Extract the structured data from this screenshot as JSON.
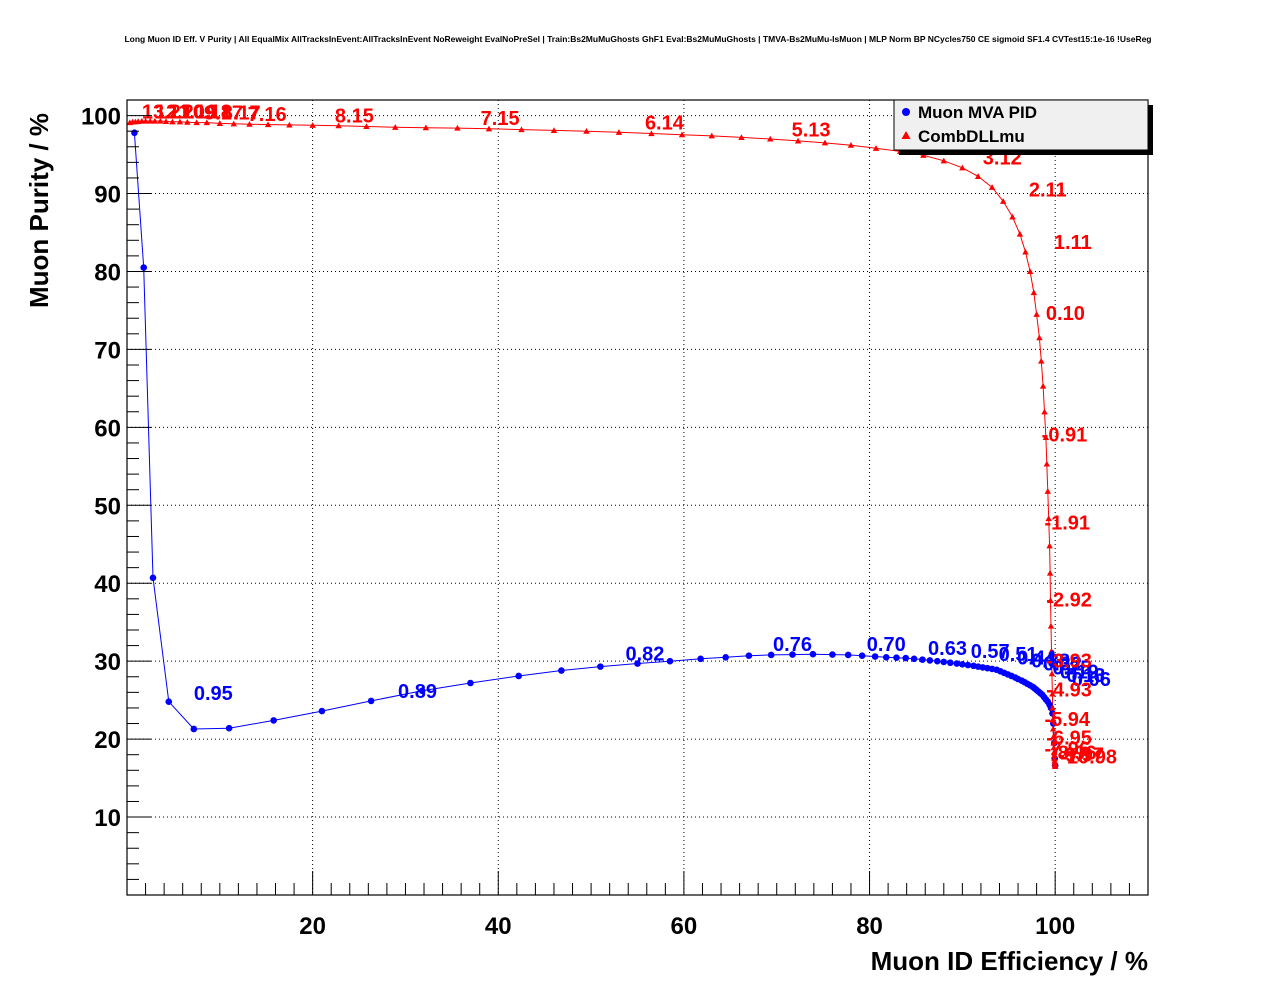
{
  "chart_data": {
    "type": "scatter",
    "title": "Long Muon ID Eff. V Purity | All EqualMix AllTracksInEvent:AllTracksInEvent NoReweight EvalNoPreSel | Train:Bs2MuMuGhosts GhF1 Eval:Bs2MuMuGhosts | TMVA-Bs2MuMu-IsMuon | MLP Norm BP NCycles750 CE sigmoid SF1.4 CVTest15:1e-16 !UseReg",
    "xlabel": "Muon ID Efficiency / %",
    "ylabel": "Muon Purity / %",
    "xlim": [
      0,
      110
    ],
    "ylim": [
      0,
      102
    ],
    "x_ticks": [
      20,
      40,
      60,
      80,
      100
    ],
    "y_ticks": [
      10,
      20,
      30,
      40,
      50,
      60,
      70,
      80,
      90,
      100
    ],
    "grid": true,
    "legend_position": "top-right",
    "series": [
      {
        "name": "Muon MVA PID",
        "color": "#0000ff",
        "marker": "circle",
        "x": [
          0.8,
          1.8,
          2.8,
          4.5,
          7.2,
          11.0,
          15.8,
          21.0,
          26.3,
          31.8,
          37.0,
          42.2,
          46.8,
          51.0,
          55.0,
          58.5,
          61.8,
          64.5,
          67.0,
          69.4,
          71.7,
          73.9,
          76.0,
          77.7,
          79.2,
          80.6,
          81.8,
          82.9,
          83.9,
          84.8,
          85.7,
          86.5,
          87.3,
          88.0,
          88.7,
          89.4,
          90.0,
          90.6,
          91.2,
          91.7,
          92.2,
          92.7,
          93.2,
          93.7,
          94.1,
          94.5,
          94.9,
          95.3,
          95.7,
          96.0,
          96.4,
          96.7,
          97.0,
          97.3,
          97.6,
          97.8,
          98.0,
          98.2,
          98.4,
          98.6,
          98.8,
          99.0,
          99.2,
          99.4,
          99.55,
          99.7,
          99.8,
          99.9,
          99.95,
          100.0
        ],
        "y": [
          97.8,
          80.5,
          40.7,
          24.8,
          21.3,
          21.4,
          22.4,
          23.6,
          24.9,
          26.2,
          27.2,
          28.1,
          28.8,
          29.3,
          29.7,
          30.0,
          30.3,
          30.5,
          30.7,
          30.8,
          30.85,
          30.9,
          30.85,
          30.8,
          30.7,
          30.6,
          30.5,
          30.45,
          30.4,
          30.3,
          30.2,
          30.1,
          30.0,
          29.9,
          29.8,
          29.7,
          29.6,
          29.5,
          29.4,
          29.3,
          29.2,
          29.1,
          29.0,
          28.9,
          28.7,
          28.5,
          28.3,
          28.1,
          27.9,
          27.7,
          27.5,
          27.3,
          27.1,
          26.9,
          26.7,
          26.5,
          26.3,
          26.1,
          25.9,
          25.7,
          25.4,
          25.1,
          24.8,
          24.4,
          24.0,
          23.3,
          22.0,
          19.5,
          17.5,
          16.6
        ]
      },
      {
        "name": "CombDLLmu",
        "color": "#ff0000",
        "marker": "triangle",
        "x": [
          0.3,
          0.6,
          0.9,
          1.2,
          1.6,
          2.0,
          2.5,
          3.0,
          3.6,
          4.2,
          4.9,
          5.7,
          6.5,
          7.5,
          8.6,
          10.0,
          11.5,
          13.2,
          15.2,
          17.5,
          20.0,
          22.8,
          25.8,
          28.9,
          32.2,
          35.6,
          39.0,
          42.5,
          46.0,
          49.5,
          53.0,
          56.5,
          59.8,
          63.0,
          66.2,
          69.3,
          72.3,
          75.2,
          78.0,
          80.7,
          83.3,
          85.8,
          88.0,
          90.0,
          91.7,
          93.2,
          94.4,
          95.4,
          96.2,
          96.8,
          97.3,
          97.7,
          98.0,
          98.3,
          98.5,
          98.7,
          98.85,
          99.0,
          99.1,
          99.2,
          99.3,
          99.4,
          99.45,
          99.5,
          99.55,
          99.6,
          99.65,
          99.7,
          99.72,
          99.75,
          99.78,
          99.8,
          99.82,
          99.85,
          99.87,
          99.9,
          99.92,
          99.94,
          99.96,
          99.98,
          100.0
        ],
        "y": [
          99.1,
          99.2,
          99.2,
          99.25,
          99.3,
          99.3,
          99.3,
          99.3,
          99.3,
          99.25,
          99.2,
          99.2,
          99.15,
          99.1,
          99.1,
          99.0,
          98.95,
          98.9,
          98.85,
          98.8,
          98.75,
          98.7,
          98.6,
          98.5,
          98.45,
          98.4,
          98.3,
          98.2,
          98.1,
          98.0,
          97.85,
          97.7,
          97.55,
          97.4,
          97.2,
          97.0,
          96.75,
          96.5,
          96.2,
          95.8,
          95.4,
          94.9,
          94.2,
          93.3,
          92.2,
          90.8,
          89.0,
          87.0,
          84.8,
          82.5,
          80.0,
          77.3,
          74.5,
          71.5,
          68.5,
          65.3,
          62.0,
          58.7,
          55.3,
          51.8,
          48.3,
          44.8,
          41.3,
          37.8,
          34.5,
          31.3,
          28.4,
          25.8,
          24.0,
          22.5,
          21.3,
          20.3,
          19.5,
          18.9,
          18.3,
          17.9,
          17.5,
          17.2,
          16.9,
          16.7,
          16.5
        ]
      }
    ],
    "annotations": [
      {
        "text": "0.95",
        "series": "Muon MVA PID",
        "x": 9.3,
        "y": 25.0,
        "color": "#0000ff"
      },
      {
        "text": "0.89",
        "series": "Muon MVA PID",
        "x": 31.3,
        "y": 25.3,
        "color": "#0000ff"
      },
      {
        "text": "0.82",
        "series": "Muon MVA PID",
        "x": 55.8,
        "y": 30.1,
        "color": "#0000ff"
      },
      {
        "text": "0.76",
        "series": "Muon MVA PID",
        "x": 71.7,
        "y": 31.3,
        "color": "#0000ff"
      },
      {
        "text": "0.70",
        "series": "Muon MVA PID",
        "x": 81.8,
        "y": 31.3,
        "color": "#0000ff"
      },
      {
        "text": "0.63",
        "series": "Muon MVA PID",
        "x": 88.4,
        "y": 30.8,
        "color": "#0000ff"
      },
      {
        "text": "0.57",
        "series": "Muon MVA PID",
        "x": 93.0,
        "y": 30.4,
        "color": "#0000ff"
      },
      {
        "text": "0.51",
        "series": "Muon MVA PID",
        "x": 96.0,
        "y": 30.0,
        "color": "#0000ff"
      },
      {
        "text": "0.44",
        "series": "Muon MVA PID",
        "x": 98.0,
        "y": 29.6,
        "color": "#0000ff"
      },
      {
        "text": "0.38",
        "series": "Muon MVA PID",
        "x": 99.5,
        "y": 29.2,
        "color": "#0000ff"
      },
      {
        "text": "0.32",
        "series": "Muon MVA PID",
        "x": 100.8,
        "y": 28.8,
        "color": "#0000ff"
      },
      {
        "text": "0.25",
        "series": "Muon MVA PID",
        "x": 101.8,
        "y": 28.3,
        "color": "#0000ff"
      },
      {
        "text": "0.19",
        "series": "Muon MVA PID",
        "x": 102.6,
        "y": 27.8,
        "color": "#0000ff"
      },
      {
        "text": "0.13",
        "series": "Muon MVA PID",
        "x": 103.3,
        "y": 27.3,
        "color": "#0000ff"
      },
      {
        "text": "0.06",
        "series": "Muon MVA PID",
        "x": 103.9,
        "y": 26.8,
        "color": "#0000ff"
      },
      {
        "text": "13.21",
        "series": "CombDLLmu",
        "x": 4.3,
        "y": 99.6,
        "color": "#ff0000"
      },
      {
        "text": "12.20",
        "series": "CombDLLmu",
        "x": 5.7,
        "y": 99.6,
        "color": "#ff0000"
      },
      {
        "text": "11.19",
        "series": "CombDLLmu",
        "x": 7.1,
        "y": 99.6,
        "color": "#ff0000"
      },
      {
        "text": "10.18",
        "series": "CombDLLmu",
        "x": 8.6,
        "y": 99.6,
        "color": "#ff0000"
      },
      {
        "text": "9.17",
        "series": "CombDLLmu",
        "x": 10.4,
        "y": 99.5,
        "color": "#ff0000"
      },
      {
        "text": "8.17",
        "series": "CombDLLmu",
        "x": 12.3,
        "y": 99.5,
        "color": "#ff0000"
      },
      {
        "text": "7.16",
        "series": "CombDLLmu",
        "x": 15.1,
        "y": 99.3,
        "color": "#ff0000"
      },
      {
        "text": "8.15",
        "series": "CombDLLmu",
        "x": 24.5,
        "y": 99.1,
        "color": "#ff0000"
      },
      {
        "text": "7.15",
        "series": "CombDLLmu",
        "x": 40.2,
        "y": 98.8,
        "color": "#ff0000"
      },
      {
        "text": "6.14",
        "series": "CombDLLmu",
        "x": 57.9,
        "y": 98.2,
        "color": "#ff0000"
      },
      {
        "text": "5.13",
        "series": "CombDLLmu",
        "x": 73.7,
        "y": 97.3,
        "color": "#ff0000"
      },
      {
        "text": "3.12",
        "series": "CombDLLmu",
        "x": 94.3,
        "y": 93.7,
        "color": "#ff0000"
      },
      {
        "text": "2.11",
        "series": "CombDLLmu",
        "x": 99.2,
        "y": 89.6,
        "color": "#ff0000"
      },
      {
        "text": "1.11",
        "series": "CombDLLmu",
        "x": 101.9,
        "y": 82.9,
        "color": "#ff0000"
      },
      {
        "text": "0.10",
        "series": "CombDLLmu",
        "x": 101.1,
        "y": 73.8,
        "color": "#ff0000"
      },
      {
        "text": "-0.91",
        "series": "CombDLLmu",
        "x": 101.0,
        "y": 58.2,
        "color": "#ff0000"
      },
      {
        "text": "-1.91",
        "series": "CombDLLmu",
        "x": 101.3,
        "y": 46.9,
        "color": "#ff0000"
      },
      {
        "text": "-2.92",
        "series": "CombDLLmu",
        "x": 101.5,
        "y": 37.0,
        "color": "#ff0000"
      },
      {
        "text": "-3.93",
        "series": "CombDLLmu",
        "x": 101.5,
        "y": 29.2,
        "color": "#ff0000"
      },
      {
        "text": "-4.93",
        "series": "CombDLLmu",
        "x": 101.5,
        "y": 25.5,
        "color": "#ff0000"
      },
      {
        "text": "-5.94",
        "series": "CombDLLmu",
        "x": 101.3,
        "y": 21.7,
        "color": "#ff0000"
      },
      {
        "text": "-6.95",
        "series": "CombDLLmu",
        "x": 101.5,
        "y": 19.3,
        "color": "#ff0000"
      },
      {
        "text": "-7.96",
        "series": "CombDLLmu",
        "x": 101.3,
        "y": 17.9,
        "color": "#ff0000"
      },
      {
        "text": "-8.96",
        "series": "CombDLLmu",
        "x": 102.0,
        "y": 17.4,
        "color": "#ff0000"
      },
      {
        "text": "-9.97",
        "series": "CombDLLmu",
        "x": 102.8,
        "y": 17.1,
        "color": "#ff0000"
      },
      {
        "text": "-10.98",
        "series": "CombDLLmu",
        "x": 103.6,
        "y": 16.9,
        "color": "#ff0000"
      }
    ]
  },
  "colors": {
    "mva": "#0000ff",
    "dll": "#ff0000",
    "grid": "#000000",
    "background": "#ffffff",
    "legend_bg": "#f0f0f0"
  }
}
